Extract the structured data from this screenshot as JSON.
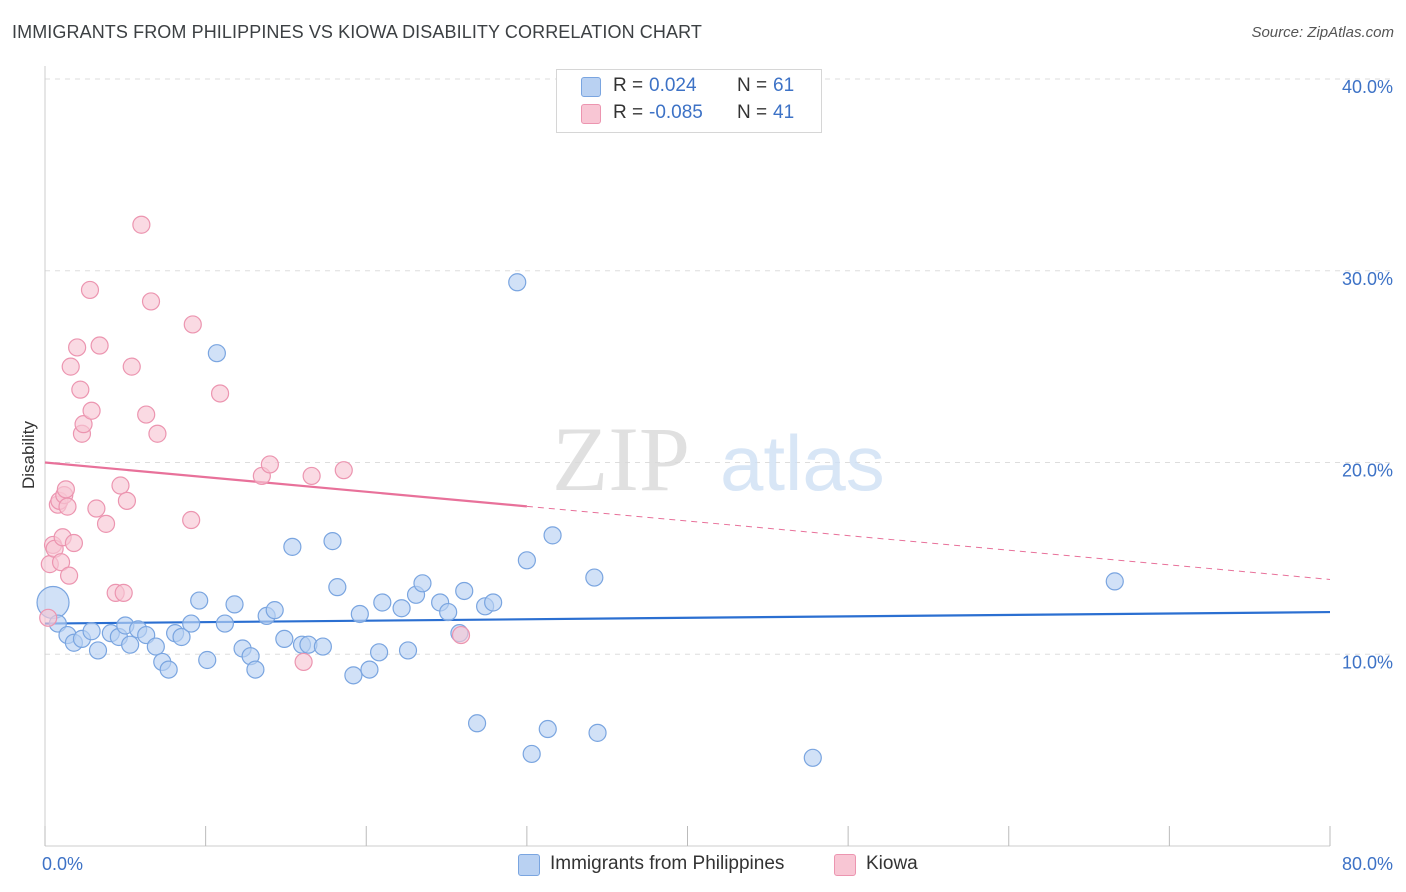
{
  "title": "IMMIGRANTS FROM PHILIPPINES VS KIOWA DISABILITY CORRELATION CHART",
  "source": "Source: ZipAtlas.com",
  "watermark": {
    "zip": "ZIP",
    "atlas": "atlas"
  },
  "colors": {
    "blue_fill": "#b9d1f2",
    "blue_stroke": "#7aa5e0",
    "blue_line": "#2b6fd1",
    "pink_fill": "#f8c6d4",
    "pink_stroke": "#ec95b0",
    "pink_line": "#e8719a",
    "axis_text": "#3d72c6",
    "grid": "#dddddd"
  },
  "legend": {
    "rows": [
      {
        "label": "R =",
        "r": " 0.024",
        "n_label": "N =",
        "n": "61",
        "color": "#b9d1f2",
        "stroke": "#7aa5e0"
      },
      {
        "label": "R =",
        "r": "-0.085",
        "n_label": "N =",
        "n": "41",
        "color": "#f8c6d4",
        "stroke": "#ec95b0"
      }
    ]
  },
  "bottom_legend": [
    {
      "label": "Immigrants from Philippines",
      "color": "#b9d1f2",
      "stroke": "#7aa5e0"
    },
    {
      "label": "Kiowa",
      "color": "#f8c6d4",
      "stroke": "#ec95b0"
    }
  ],
  "chart_data": {
    "type": "scatter",
    "title": "IMMIGRANTS FROM PHILIPPINES VS KIOWA DISABILITY CORRELATION CHART",
    "xlabel": "",
    "ylabel": "Disability",
    "xlim": [
      0,
      80
    ],
    "ylim": [
      0,
      40
    ],
    "x_tick_labels": [
      "0.0%",
      "80.0%"
    ],
    "y_ticks": [
      10,
      20,
      30,
      40
    ],
    "y_tick_labels": [
      "10.0%",
      "20.0%",
      "30.0%",
      "40.0%"
    ],
    "grid": true,
    "series": [
      {
        "name": "Immigrants from Philippines",
        "color": "#b9d1f2",
        "trend": {
          "x0": 0,
          "y0": 11.6,
          "x1": 80,
          "y1": 12.2,
          "dashed_from": null
        },
        "points": [
          [
            0.5,
            12.7
          ],
          [
            0.8,
            11.6
          ],
          [
            1.4,
            11.0
          ],
          [
            1.8,
            10.6
          ],
          [
            2.3,
            10.8
          ],
          [
            2.9,
            11.2
          ],
          [
            3.3,
            10.2
          ],
          [
            4.1,
            11.1
          ],
          [
            4.6,
            10.9
          ],
          [
            5.0,
            11.5
          ],
          [
            5.3,
            10.5
          ],
          [
            5.8,
            11.3
          ],
          [
            6.3,
            11.0
          ],
          [
            6.9,
            10.4
          ],
          [
            7.3,
            9.6
          ],
          [
            7.7,
            9.2
          ],
          [
            8.1,
            11.1
          ],
          [
            8.5,
            10.9
          ],
          [
            9.1,
            11.6
          ],
          [
            9.6,
            12.8
          ],
          [
            10.1,
            9.7
          ],
          [
            10.7,
            25.7
          ],
          [
            11.2,
            11.6
          ],
          [
            11.8,
            12.6
          ],
          [
            12.3,
            10.3
          ],
          [
            12.8,
            9.9
          ],
          [
            13.1,
            9.2
          ],
          [
            13.8,
            12.0
          ],
          [
            14.3,
            12.3
          ],
          [
            14.9,
            10.8
          ],
          [
            15.4,
            15.6
          ],
          [
            16.0,
            10.5
          ],
          [
            16.4,
            10.5
          ],
          [
            17.3,
            10.4
          ],
          [
            17.9,
            15.9
          ],
          [
            18.2,
            13.5
          ],
          [
            19.2,
            8.9
          ],
          [
            19.6,
            12.1
          ],
          [
            20.2,
            9.2
          ],
          [
            20.8,
            10.1
          ],
          [
            21.0,
            12.7
          ],
          [
            22.2,
            12.4
          ],
          [
            22.6,
            10.2
          ],
          [
            23.1,
            13.1
          ],
          [
            23.5,
            13.7
          ],
          [
            24.6,
            12.7
          ],
          [
            25.1,
            12.2
          ],
          [
            25.8,
            11.1
          ],
          [
            26.1,
            13.3
          ],
          [
            26.9,
            6.4
          ],
          [
            27.4,
            12.5
          ],
          [
            27.9,
            12.7
          ],
          [
            29.4,
            29.4
          ],
          [
            30.0,
            14.9
          ],
          [
            30.3,
            4.8
          ],
          [
            31.3,
            6.1
          ],
          [
            31.6,
            16.2
          ],
          [
            34.2,
            14.0
          ],
          [
            34.4,
            5.9
          ],
          [
            47.8,
            4.6
          ],
          [
            66.6,
            13.8
          ]
        ]
      },
      {
        "name": "Kiowa",
        "color": "#f8c6d4",
        "trend": {
          "x0": 0,
          "y0": 20.0,
          "x1": 80,
          "y1": 13.9,
          "dashed_from": 30.0
        },
        "points": [
          [
            0.2,
            11.9
          ],
          [
            0.3,
            14.7
          ],
          [
            0.5,
            15.7
          ],
          [
            0.6,
            15.5
          ],
          [
            0.8,
            17.8
          ],
          [
            0.9,
            18.0
          ],
          [
            1.0,
            14.8
          ],
          [
            1.1,
            16.1
          ],
          [
            1.2,
            18.3
          ],
          [
            1.3,
            18.6
          ],
          [
            1.4,
            17.7
          ],
          [
            1.5,
            14.1
          ],
          [
            1.6,
            25.0
          ],
          [
            1.8,
            15.8
          ],
          [
            2.0,
            26.0
          ],
          [
            2.2,
            23.8
          ],
          [
            2.3,
            21.5
          ],
          [
            2.4,
            22.0
          ],
          [
            2.8,
            29.0
          ],
          [
            2.9,
            22.7
          ],
          [
            3.2,
            17.6
          ],
          [
            3.4,
            26.1
          ],
          [
            3.8,
            16.8
          ],
          [
            4.4,
            13.2
          ],
          [
            4.7,
            18.8
          ],
          [
            4.9,
            13.2
          ],
          [
            5.1,
            18.0
          ],
          [
            5.4,
            25.0
          ],
          [
            6.0,
            32.4
          ],
          [
            6.3,
            22.5
          ],
          [
            6.6,
            28.4
          ],
          [
            7.0,
            21.5
          ],
          [
            9.1,
            17.0
          ],
          [
            9.2,
            27.2
          ],
          [
            10.9,
            23.6
          ],
          [
            13.5,
            19.3
          ],
          [
            14.0,
            19.9
          ],
          [
            16.1,
            9.6
          ],
          [
            16.6,
            19.3
          ],
          [
            18.6,
            19.6
          ],
          [
            25.9,
            11.0
          ]
        ]
      }
    ]
  }
}
